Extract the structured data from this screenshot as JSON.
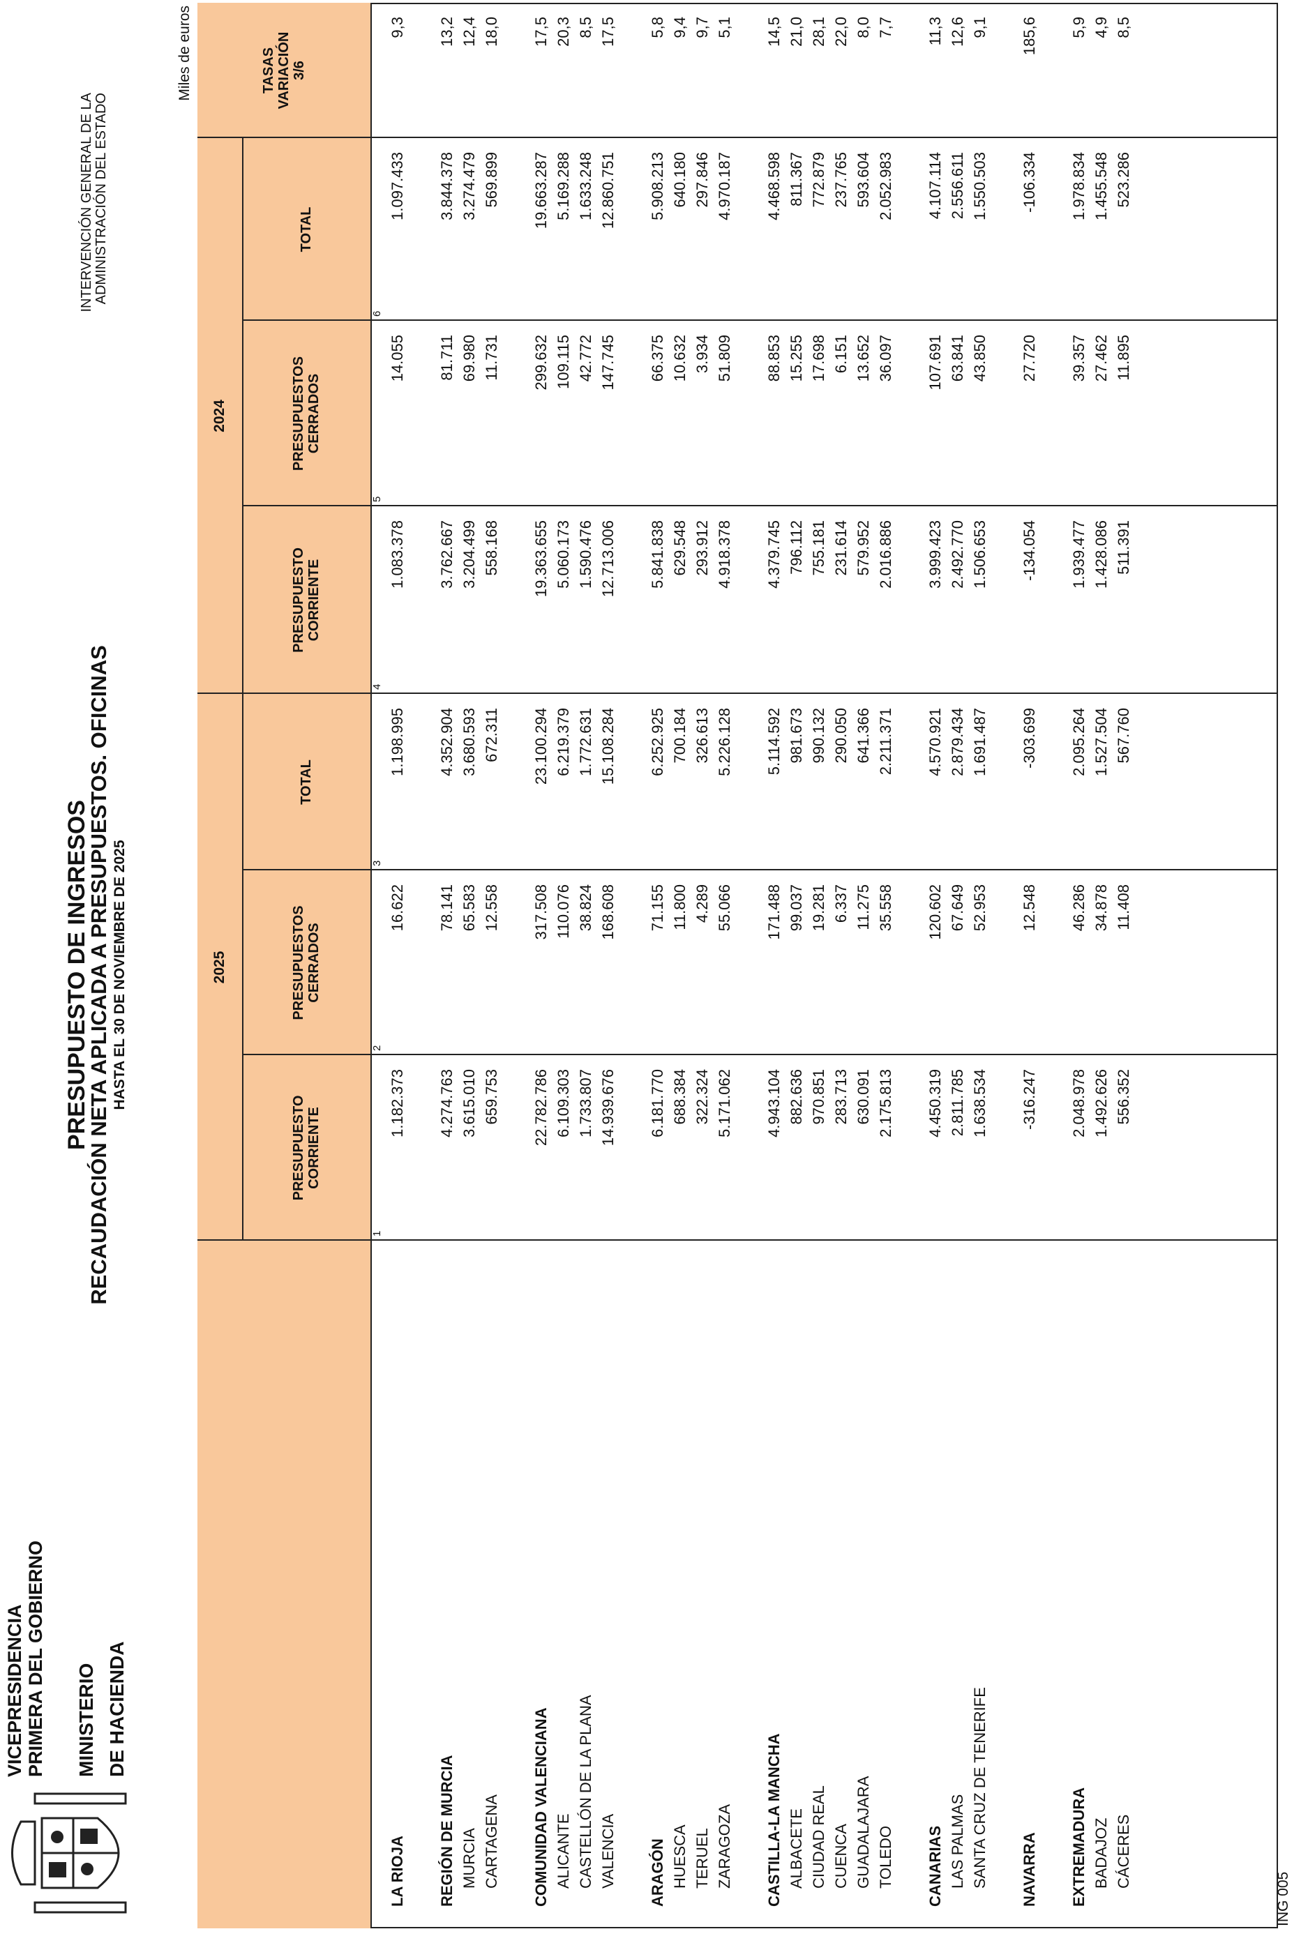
{
  "header": {
    "office": [
      "VICEPRESIDENCIA",
      "PRIMERA DEL GOBIERNO"
    ],
    "ministry": [
      "MINISTERIO",
      "DE HACIENDA"
    ],
    "right": [
      "INTERVENCIÓN GENERAL DE LA",
      "ADMINISTRACIÓN DEL ESTADO"
    ],
    "title": "PRESUPUESTO DE INGRESOS",
    "subtitle": "RECAUDACIÓN NETA APLICADA A PRESUPUESTOS. OFICINAS",
    "date": "HASTA EL 30 DE NOVIEMBRE DE 2025",
    "units": "Miles de euros"
  },
  "table": {
    "years": [
      "2025",
      "2024"
    ],
    "columns": [
      {
        "label": "PRESUPUESTO\nCORRIENTE",
        "number": "1"
      },
      {
        "label": "PRESUPUESTOS\nCERRADOS",
        "number": "2"
      },
      {
        "label": "TOTAL",
        "number": "3"
      },
      {
        "label": "PRESUPUESTO\nCORRIENTE",
        "number": "4"
      },
      {
        "label": "PRESUPUESTOS\nCERRADOS",
        "number": "5"
      },
      {
        "label": "TOTAL",
        "number": "6"
      },
      {
        "label": "TASAS\nVARIACIÓN\n3/6"
      }
    ],
    "groups": [
      {
        "label": "LA RIOJA",
        "values": [
          "1.182.373",
          "16.622",
          "1.198.995",
          "1.083.378",
          "14.055",
          "1.097.433",
          "9,3"
        ],
        "items": []
      },
      {
        "label": "REGIÓN DE MURCIA",
        "values": [
          "4.274.763",
          "78.141",
          "4.352.904",
          "3.762.667",
          "81.711",
          "3.844.378",
          "13,2"
        ],
        "items": [
          {
            "label": "MURCIA",
            "values": [
              "3.615.010",
              "65.583",
              "3.680.593",
              "3.204.499",
              "69.980",
              "3.274.479",
              "12,4"
            ]
          },
          {
            "label": "CARTAGENA",
            "values": [
              "659.753",
              "12.558",
              "672.311",
              "558.168",
              "11.731",
              "569.899",
              "18,0"
            ]
          }
        ]
      },
      {
        "label": "COMUNIDAD VALENCIANA",
        "values": [
          "22.782.786",
          "317.508",
          "23.100.294",
          "19.363.655",
          "299.632",
          "19.663.287",
          "17,5"
        ],
        "items": [
          {
            "label": "ALICANTE",
            "values": [
              "6.109.303",
              "110.076",
              "6.219.379",
              "5.060.173",
              "109.115",
              "5.169.288",
              "20,3"
            ]
          },
          {
            "label": "CASTELLÓN DE LA PLANA",
            "values": [
              "1.733.807",
              "38.824",
              "1.772.631",
              "1.590.476",
              "42.772",
              "1.633.248",
              "8,5"
            ]
          },
          {
            "label": "VALENCIA",
            "values": [
              "14.939.676",
              "168.608",
              "15.108.284",
              "12.713.006",
              "147.745",
              "12.860.751",
              "17,5"
            ]
          }
        ]
      },
      {
        "label": "ARAGÓN",
        "values": [
          "6.181.770",
          "71.155",
          "6.252.925",
          "5.841.838",
          "66.375",
          "5.908.213",
          "5,8"
        ],
        "items": [
          {
            "label": "HUESCA",
            "values": [
              "688.384",
              "11.800",
              "700.184",
              "629.548",
              "10.632",
              "640.180",
              "9,4"
            ]
          },
          {
            "label": "TERUEL",
            "values": [
              "322.324",
              "4.289",
              "326.613",
              "293.912",
              "3.934",
              "297.846",
              "9,7"
            ]
          },
          {
            "label": "ZARAGOZA",
            "values": [
              "5.171.062",
              "55.066",
              "5.226.128",
              "4.918.378",
              "51.809",
              "4.970.187",
              "5,1"
            ]
          }
        ]
      },
      {
        "label": "CASTILLA-LA MANCHA",
        "values": [
          "4.943.104",
          "171.488",
          "5.114.592",
          "4.379.745",
          "88.853",
          "4.468.598",
          "14,5"
        ],
        "items": [
          {
            "label": "ALBACETE",
            "values": [
              "882.636",
              "99.037",
              "981.673",
              "796.112",
              "15.255",
              "811.367",
              "21,0"
            ]
          },
          {
            "label": "CIUDAD REAL",
            "values": [
              "970.851",
              "19.281",
              "990.132",
              "755.181",
              "17.698",
              "772.879",
              "28,1"
            ]
          },
          {
            "label": "CUENCA",
            "values": [
              "283.713",
              "6.337",
              "290.050",
              "231.614",
              "6.151",
              "237.765",
              "22,0"
            ]
          },
          {
            "label": "GUADALAJARA",
            "values": [
              "630.091",
              "11.275",
              "641.366",
              "579.952",
              "13.652",
              "593.604",
              "8,0"
            ]
          },
          {
            "label": "TOLEDO",
            "values": [
              "2.175.813",
              "35.558",
              "2.211.371",
              "2.016.886",
              "36.097",
              "2.052.983",
              "7,7"
            ]
          }
        ]
      },
      {
        "label": "CANARIAS",
        "values": [
          "4.450.319",
          "120.602",
          "4.570.921",
          "3.999.423",
          "107.691",
          "4.107.114",
          "11,3"
        ],
        "items": [
          {
            "label": "LAS PALMAS",
            "values": [
              "2.811.785",
              "67.649",
              "2.879.434",
              "2.492.770",
              "63.841",
              "2.556.611",
              "12,6"
            ]
          },
          {
            "label": "SANTA CRUZ DE TENERIFE",
            "values": [
              "1.638.534",
              "52.953",
              "1.691.487",
              "1.506.653",
              "43.850",
              "1.550.503",
              "9,1"
            ]
          }
        ]
      },
      {
        "label": "NAVARRA",
        "values": [
          "-316.247",
          "12.548",
          "-303.699",
          "-134.054",
          "27.720",
          "-106.334",
          "185,6"
        ],
        "items": []
      },
      {
        "label": "EXTREMADURA",
        "values": [
          "2.048.978",
          "46.286",
          "2.095.264",
          "1.939.477",
          "39.357",
          "1.978.834",
          "5,9"
        ],
        "items": [
          {
            "label": "BADAJOZ",
            "values": [
              "1.492.626",
              "34.878",
              "1.527.504",
              "1.428.086",
              "27.462",
              "1.455.548",
              "4,9"
            ]
          },
          {
            "label": "CÁCERES",
            "values": [
              "556.352",
              "11.408",
              "567.760",
              "511.391",
              "11.895",
              "523.286",
              "8,5"
            ]
          }
        ]
      }
    ]
  },
  "footer": "ING 005"
}
